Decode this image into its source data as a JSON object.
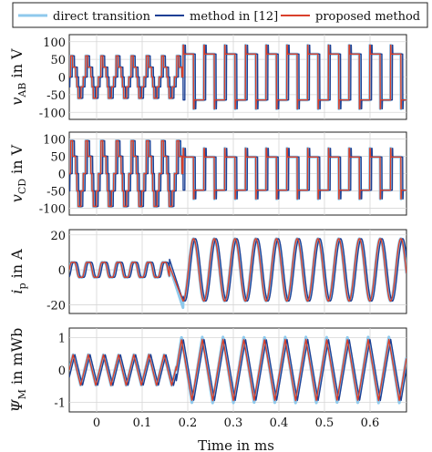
{
  "colors": {
    "direct": "#8ec9ec",
    "method12": "#1b3f94",
    "proposed": "#d9402b",
    "grid": "#d6d6d6",
    "axis": "#222222"
  },
  "legend": {
    "placement": "top",
    "items": [
      {
        "key": "direct",
        "label": "direct transition"
      },
      {
        "key": "method12",
        "label": "method in [12]"
      },
      {
        "key": "proposed",
        "label": "proposed method"
      }
    ]
  },
  "xaxis": {
    "label": "Time in ms",
    "range": [
      -0.06,
      0.68
    ],
    "ticks": [
      0,
      0.1,
      0.2,
      0.3,
      0.4,
      0.5,
      0.6
    ],
    "tick_labels": [
      "0",
      "0.1",
      "0.2",
      "0.3",
      "0.4",
      "0.5",
      "0.6"
    ]
  },
  "chart_data": [
    {
      "type": "line",
      "id": "vab",
      "ylabel_main": "v",
      "ylabel_sub": "AB",
      "ylabel_unit": " in V",
      "ylim": [
        -120,
        120
      ],
      "yticks": [
        -100,
        -50,
        0,
        50,
        100
      ],
      "ytick_labels": [
        "-100",
        "-50",
        "0",
        "50",
        "100"
      ],
      "grid": true,
      "before": {
        "t_start": -0.06,
        "t_end": 0.19,
        "period": 0.0333,
        "shape": "stepped-three-level",
        "levels": [
          -60,
          -28,
          28,
          60
        ]
      },
      "after": {
        "t_start": 0.19,
        "t_end": 0.68,
        "period": 0.0455,
        "shape": "square",
        "amplitude": 65,
        "overshoot_to": 105
      },
      "series": [
        {
          "name": "direct transition",
          "key": "direct"
        },
        {
          "name": "method in [12]",
          "key": "method12",
          "phase_shift_ms": -0.004
        },
        {
          "name": "proposed method",
          "key": "proposed",
          "phase_shift_ms": 0
        }
      ]
    },
    {
      "type": "line",
      "id": "vcd",
      "ylabel_main": "v",
      "ylabel_sub": "CD",
      "ylabel_unit": " in V",
      "ylim": [
        -120,
        120
      ],
      "yticks": [
        -100,
        -50,
        0,
        50,
        100
      ],
      "ytick_labels": [
        "-100",
        "-50",
        "0",
        "50",
        "100"
      ],
      "grid": true,
      "before": {
        "t_start": -0.06,
        "t_end": 0.19,
        "period": 0.0333,
        "shape": "stepped-three-level",
        "levels": [
          -95,
          -50,
          50,
          95
        ]
      },
      "after": {
        "t_start": 0.19,
        "t_end": 0.68,
        "period": 0.0455,
        "shape": "square",
        "amplitude": 48,
        "overshoot_to": 100
      },
      "series": [
        {
          "name": "direct transition",
          "key": "direct"
        },
        {
          "name": "method in [12]",
          "key": "method12",
          "phase_shift_ms": -0.004
        },
        {
          "name": "proposed method",
          "key": "proposed",
          "phase_shift_ms": 0
        }
      ]
    },
    {
      "type": "line",
      "id": "ip",
      "ylabel_main": "i",
      "ylabel_sub": "p",
      "ylabel_unit": " in A",
      "ylim": [
        -25,
        23
      ],
      "yticks": [
        -20,
        0,
        20
      ],
      "ytick_labels": [
        "-20",
        "0",
        "20"
      ],
      "grid": true,
      "before": {
        "t_start": -0.06,
        "t_end": 0.16,
        "period": 0.0333,
        "amplitude": 5
      },
      "after": {
        "t_start": 0.19,
        "t_end": 0.68,
        "period": 0.0455,
        "amplitude": 17,
        "min_dip": -22
      },
      "series": [
        {
          "name": "direct transition",
          "key": "direct"
        },
        {
          "name": "method in [12]",
          "key": "method12",
          "phase_shift_ms": -0.004
        },
        {
          "name": "proposed method",
          "key": "proposed",
          "phase_shift_ms": 0
        }
      ]
    },
    {
      "type": "line",
      "id": "psi",
      "ylabel_main": "Ψ",
      "ylabel_sub": "M",
      "ylabel_unit": " in mWb",
      "ylim": [
        -1.3,
        1.3
      ],
      "yticks": [
        -1,
        0,
        1
      ],
      "ytick_labels": [
        "-1",
        "0",
        "1"
      ],
      "grid": true,
      "before": {
        "t_start": -0.06,
        "t_end": 0.175,
        "period": 0.0333,
        "amplitude": 0.48
      },
      "after": {
        "t_start": 0.175,
        "t_end": 0.68,
        "period": 0.0455,
        "amplitude": 0.95
      },
      "series": [
        {
          "name": "direct transition",
          "key": "direct"
        },
        {
          "name": "method in [12]",
          "key": "method12",
          "phase_shift_ms": -0.004
        },
        {
          "name": "proposed method",
          "key": "proposed",
          "phase_shift_ms": 0
        }
      ]
    }
  ]
}
